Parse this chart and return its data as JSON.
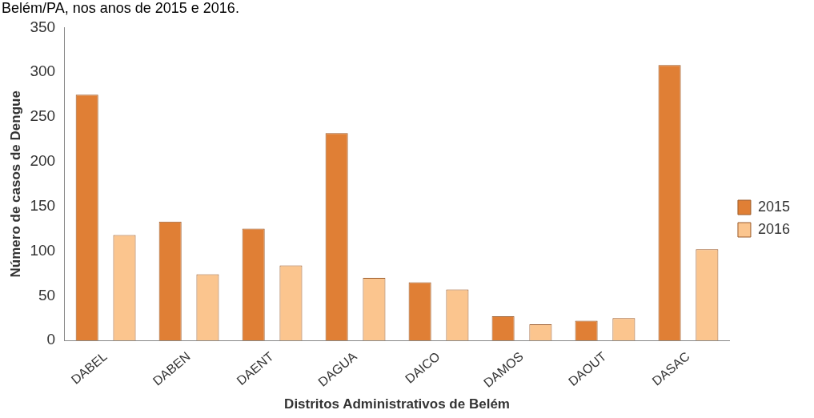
{
  "chart_data": {
    "type": "bar",
    "title": "Belém/PA, nos anos de 2015 e 2016.",
    "xlabel": "Distritos Administrativos de Belém",
    "ylabel": "Número de casos de Dengue",
    "categories": [
      "DABEL",
      "DABEN",
      "DAENT",
      "DAGUA",
      "DAICO",
      "DAMOS",
      "DAOUT",
      "DASAC"
    ],
    "series": [
      {
        "name": "2015",
        "color": "#e07f35",
        "values": [
          275,
          133,
          125,
          232,
          65,
          27,
          22,
          308
        ]
      },
      {
        "name": "2016",
        "color": "#fbc58e",
        "values": [
          118,
          74,
          84,
          70,
          57,
          18,
          25,
          102
        ]
      }
    ],
    "ylim": [
      0,
      350
    ],
    "yticks": [
      0,
      50,
      100,
      150,
      200,
      250,
      300,
      350
    ],
    "grid": false,
    "legend": "right"
  }
}
